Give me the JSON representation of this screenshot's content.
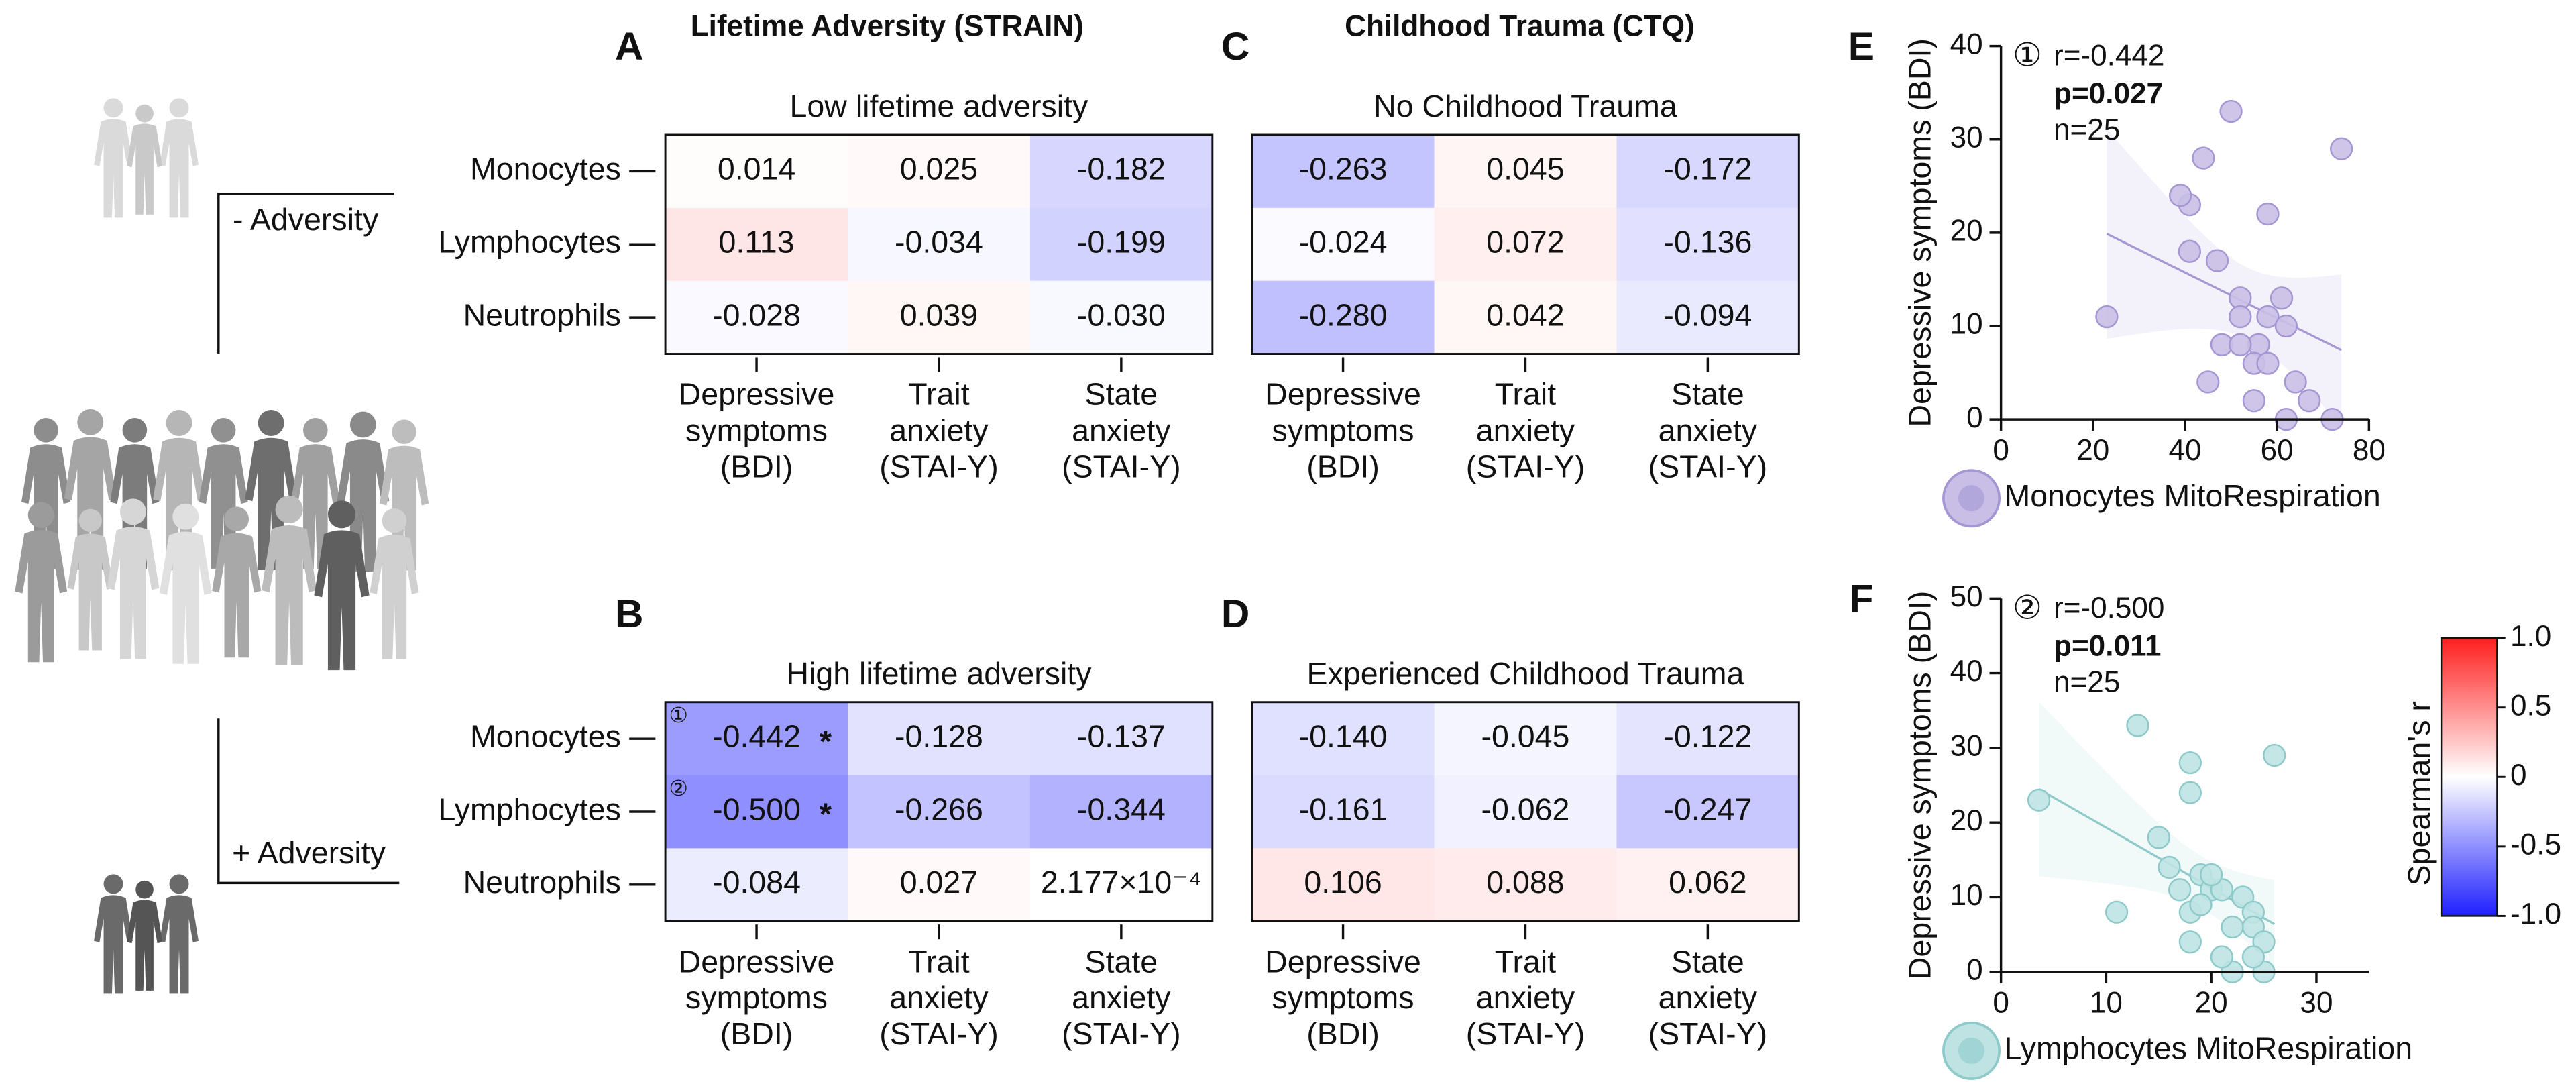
{
  "figure": {
    "section_titles": [
      "Lifetime Adversity (STRAIN)",
      "Childhood Trauma (CTQ)"
    ],
    "groups": [
      "- Adversity",
      "+ Adversity"
    ]
  },
  "colorbar": {
    "title": "Spearman's r",
    "lim": [
      -1,
      1
    ],
    "ticks": [
      {
        "value": 1,
        "label": "1.0"
      },
      0.5,
      0,
      -0.5,
      {
        "value": -1,
        "label": "-1.0"
      }
    ],
    "colors": [
      "#1f1fff",
      "#ffffff",
      "#ff1f1f"
    ]
  },
  "chart_data": [
    {
      "type": "heatmap",
      "panel": "A",
      "title": "Low lifetime adversity",
      "rows": [
        "Monocytes",
        "Lymphocytes",
        "Neutrophils"
      ],
      "columns": [
        [
          "Depressive",
          "symptoms",
          "(BDI)"
        ],
        [
          "Trait",
          "anxiety",
          "(STAI-Y)"
        ],
        [
          "State",
          "anxiety",
          "(STAI-Y)"
        ]
      ],
      "values": [
        [
          0.014,
          0.025,
          -0.182
        ],
        [
          0.113,
          -0.034,
          -0.199
        ],
        [
          -0.028,
          0.039,
          -0.03
        ]
      ],
      "value_labels": [
        [
          "0.014",
          "0.025",
          "-0.182"
        ],
        [
          "0.113",
          "-0.034",
          "-0.199"
        ],
        [
          "-0.028",
          "0.039",
          "-0.030"
        ]
      ]
    },
    {
      "type": "heatmap",
      "panel": "B",
      "title": "High lifetime adversity",
      "rows": [
        "Monocytes",
        "Lymphocytes",
        "Neutrophils"
      ],
      "columns": [
        [
          "Depressive",
          "symptoms",
          "(BDI)"
        ],
        [
          "Trait",
          "anxiety",
          "(STAI-Y)"
        ],
        [
          "State",
          "anxiety",
          "(STAI-Y)"
        ]
      ],
      "values": [
        [
          -0.442,
          -0.128,
          -0.137
        ],
        [
          -0.5,
          -0.266,
          -0.344
        ],
        [
          -0.084,
          0.027,
          0.0002177
        ]
      ],
      "value_labels": [
        [
          "-0.442",
          "-0.128",
          "-0.137"
        ],
        [
          "-0.500",
          "-0.266",
          "-0.344"
        ],
        [
          "-0.084",
          "0.027",
          "2.177×10⁻⁴"
        ]
      ],
      "significance": [
        [
          "*",
          null,
          null
        ],
        [
          "*",
          null,
          null
        ],
        [
          null,
          null,
          null
        ]
      ],
      "markers": [
        [
          "①",
          null,
          null
        ],
        [
          "②",
          null,
          null
        ],
        [
          null,
          null,
          null
        ]
      ]
    },
    {
      "type": "heatmap",
      "panel": "C",
      "title": "No Childhood Trauma",
      "columns": [
        [
          "Depressive",
          "symptoms",
          "(BDI)"
        ],
        [
          "Trait",
          "anxiety",
          "(STAI-Y)"
        ],
        [
          "State",
          "anxiety",
          "(STAI-Y)"
        ]
      ],
      "values": [
        [
          -0.263,
          0.045,
          -0.172
        ],
        [
          -0.024,
          0.072,
          -0.136
        ],
        [
          -0.28,
          0.042,
          -0.094
        ]
      ],
      "value_labels": [
        [
          "-0.263",
          "0.045",
          "-0.172"
        ],
        [
          "-0.024",
          "0.072",
          "-0.136"
        ],
        [
          "-0.280",
          "0.042",
          "-0.094"
        ]
      ]
    },
    {
      "type": "heatmap",
      "panel": "D",
      "title": "Experienced Childhood Trauma",
      "columns": [
        [
          "Depressive",
          "symptoms",
          "(BDI)"
        ],
        [
          "Trait",
          "anxiety",
          "(STAI-Y)"
        ],
        [
          "State",
          "anxiety",
          "(STAI-Y)"
        ]
      ],
      "values": [
        [
          -0.14,
          -0.045,
          -0.122
        ],
        [
          -0.161,
          -0.062,
          -0.247
        ],
        [
          0.106,
          0.088,
          0.062
        ]
      ],
      "value_labels": [
        [
          "-0.140",
          "-0.045",
          "-0.122"
        ],
        [
          "-0.161",
          "-0.062",
          "-0.247"
        ],
        [
          "0.106",
          "0.088",
          "0.062"
        ]
      ]
    },
    {
      "type": "scatter",
      "panel": "E",
      "xlabel": "Monocytes MitoRespiration",
      "ylabel": "Depressive symptoms (BDI)",
      "color": "#c9bfe6",
      "stroke": "#a497d3",
      "x": [
        23,
        50,
        44,
        41,
        39,
        41,
        47,
        52,
        58,
        74,
        52,
        56,
        58,
        61,
        55,
        58,
        62,
        64,
        48,
        52,
        45,
        55,
        62,
        72,
        67
      ],
      "values": [
        11,
        33,
        28,
        23,
        24,
        18,
        17,
        13,
        22,
        29,
        11,
        8,
        11,
        13,
        6,
        6,
        10,
        4,
        8,
        8,
        4,
        2,
        0,
        0,
        2
      ],
      "xlim": [
        0,
        80
      ],
      "xticks": [
        0,
        20,
        40,
        60,
        80
      ],
      "ylim": [
        0,
        40
      ],
      "yticks": [
        0,
        10,
        20,
        30,
        40
      ],
      "annotation": {
        "marker": "①",
        "r": "r=-0.442",
        "p": "p=0.027",
        "n": "n=25"
      }
    },
    {
      "type": "scatter",
      "panel": "F",
      "xlabel": "Lymphocytes MitoRespiration",
      "ylabel": "Depressive symptoms (BDI)",
      "color": "#bfe3e3",
      "stroke": "#8ecaca",
      "x": [
        3.6,
        13,
        18,
        18,
        26,
        15,
        11,
        18,
        19,
        20,
        21,
        18,
        23,
        24,
        24,
        25,
        25,
        22,
        20,
        17,
        21,
        22,
        19,
        16,
        24
      ],
      "values": [
        23,
        33,
        28,
        24,
        29,
        18,
        8,
        8,
        13,
        11,
        11,
        4,
        10,
        8,
        6,
        4,
        0,
        0,
        13,
        11,
        2,
        6,
        9,
        14,
        2
      ],
      "xlim": [
        0,
        35
      ],
      "xticks": [
        0,
        10,
        20,
        30
      ],
      "ylim": [
        0,
        50
      ],
      "yticks": [
        0,
        10,
        20,
        30,
        40,
        50
      ],
      "annotation": {
        "marker": "②",
        "r": "r=-0.500",
        "p": "p=0.011",
        "n": "n=25"
      }
    }
  ]
}
